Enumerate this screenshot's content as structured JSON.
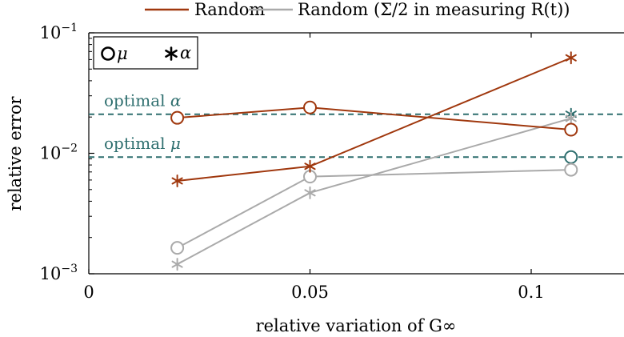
{
  "colors": {
    "random": "#a0380e",
    "random_half": "#aaaaaa",
    "optimal": "#2f6f6f",
    "axis": "#000000"
  },
  "legend_top": {
    "items": [
      {
        "label": "Random",
        "color": "#a0380e"
      },
      {
        "label": "Random (Σ/2 in measuring R(t))",
        "color": "#aaaaaa"
      }
    ]
  },
  "marker_legend": {
    "mu_label": "μ",
    "alpha_label": "α"
  },
  "chart_data": {
    "type": "line",
    "xlabel": "relative variation of G∞",
    "ylabel": "relative error",
    "xlim": [
      0,
      0.12
    ],
    "ylim": [
      0.001,
      0.1
    ],
    "yscale": "log",
    "grid": false,
    "xticks": [
      {
        "value": 0,
        "label": "0"
      },
      {
        "value": 0.05,
        "label": "0.05"
      },
      {
        "value": 0.1,
        "label": "0.1"
      }
    ],
    "yticks": [
      {
        "value": 0.001,
        "base": "10",
        "exp": "−3"
      },
      {
        "value": 0.01,
        "base": "10",
        "exp": "−2"
      },
      {
        "value": 0.1,
        "base": "10",
        "exp": "−1"
      }
    ],
    "x": [
      0.02,
      0.05,
      0.109
    ],
    "series": [
      {
        "name": "Random",
        "param": "μ",
        "marker": "circle",
        "color": "#a0380e",
        "values": [
          0.0197,
          0.024,
          0.0157
        ]
      },
      {
        "name": "Random",
        "param": "α",
        "marker": "asterisk",
        "color": "#a0380e",
        "values": [
          0.0059,
          0.0078,
          0.062
        ]
      },
      {
        "name": "Random (Σ/2 in measuring R(t))",
        "param": "μ",
        "marker": "circle",
        "color": "#aaaaaa",
        "values": [
          0.00164,
          0.0064,
          0.0073
        ]
      },
      {
        "name": "Random (Σ/2 in measuring R(t))",
        "param": "α",
        "marker": "asterisk",
        "color": "#aaaaaa",
        "values": [
          0.0012,
          0.0047,
          0.0195
        ]
      }
    ],
    "reference_lines": [
      {
        "label": "optimal α",
        "value": 0.0211,
        "marker": "asterisk",
        "marker_x": 0.109
      },
      {
        "label": "optimal μ",
        "value": 0.0093,
        "marker": "circle",
        "marker_x": 0.109
      }
    ]
  }
}
